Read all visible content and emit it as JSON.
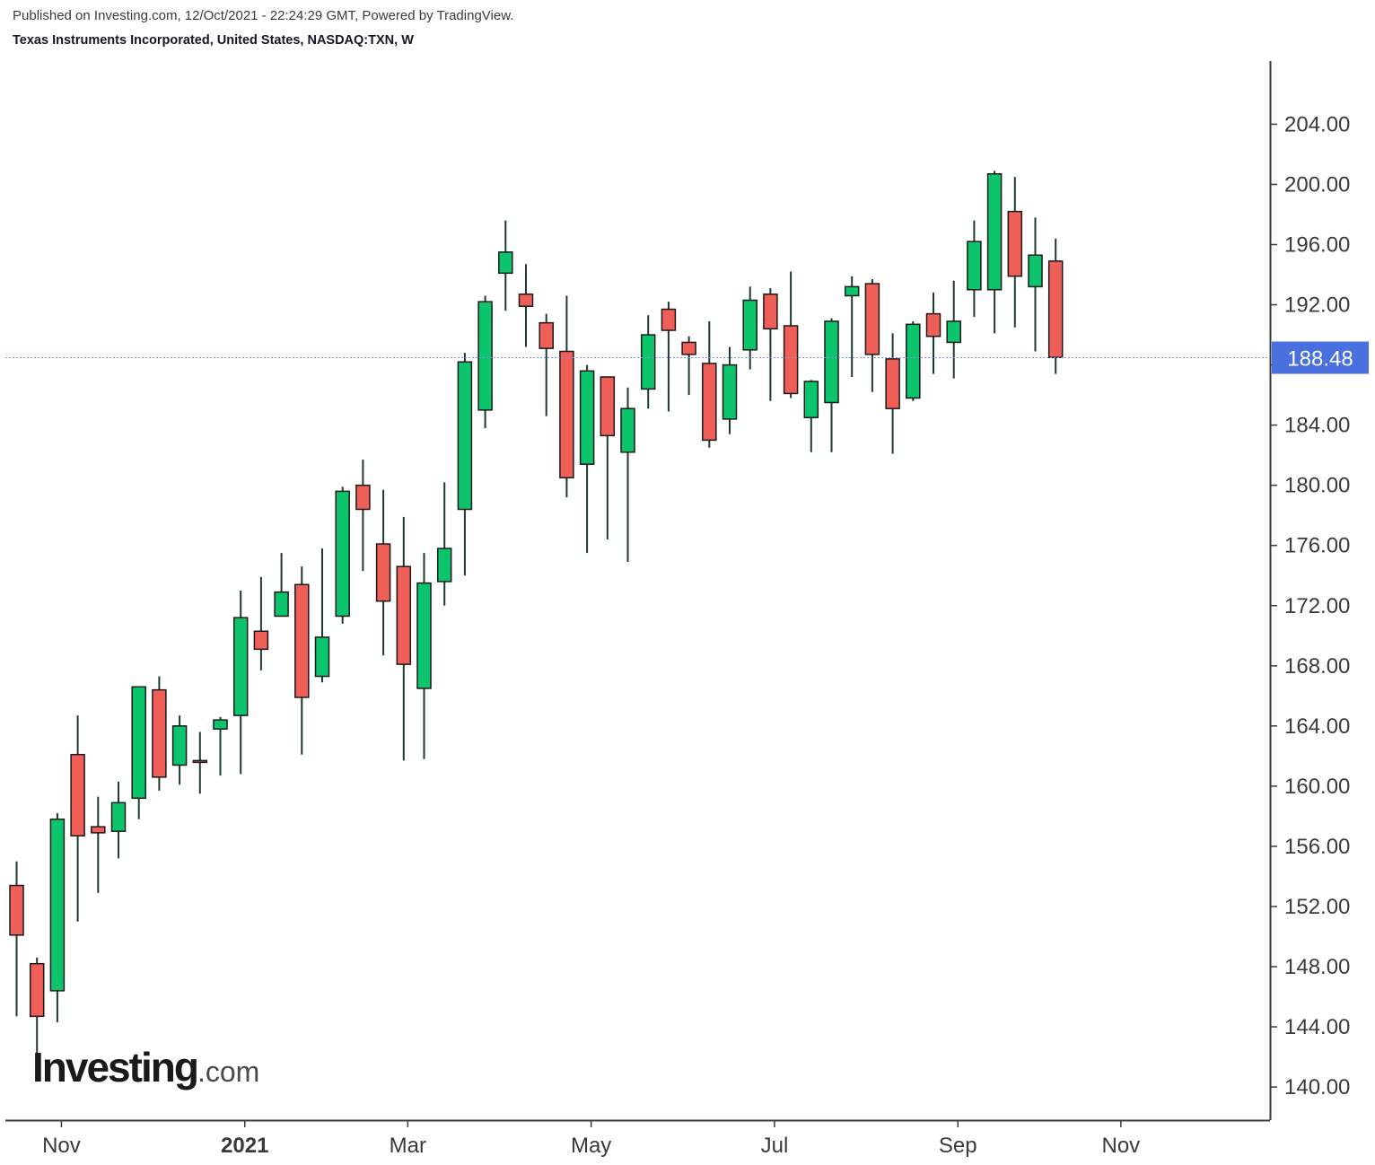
{
  "header": {
    "published": "Published on Investing.com, 12/Oct/2021 - 22:24:29 GMT, Powered by TradingView.",
    "instrument": "Texas Instruments Incorporated, United States, NASDAQ:TXN, W"
  },
  "logo": {
    "brand": "Investing",
    "suffix": ".com"
  },
  "colors": {
    "up": "#0cc46c",
    "down": "#f05f57",
    "wick": "#1d3b2a",
    "last_price_line": "#7b93d8",
    "last_price_badge": "#4a6fde",
    "axis": "#3a3a3a"
  },
  "chart_data": {
    "type": "candlestick",
    "interval": "W",
    "ylim": [
      137.8,
      208.2
    ],
    "yticks": [
      "140.00",
      "144.00",
      "148.00",
      "152.00",
      "156.00",
      "160.00",
      "164.00",
      "168.00",
      "172.00",
      "176.00",
      "180.00",
      "184.00",
      "188.00",
      "192.00",
      "196.00",
      "200.00",
      "204.00"
    ],
    "xticks": [
      {
        "label": "Nov",
        "index": 2.2,
        "bold": false
      },
      {
        "label": "2021",
        "index": 11.2,
        "bold": true
      },
      {
        "label": "Mar",
        "index": 19.2,
        "bold": false
      },
      {
        "label": "May",
        "index": 28.2,
        "bold": false
      },
      {
        "label": "Jul",
        "index": 37.2,
        "bold": false
      },
      {
        "label": "Sep",
        "index": 46.2,
        "bold": false
      },
      {
        "label": "Nov",
        "index": 54.2,
        "bold": false
      }
    ],
    "last_price": 188.48,
    "last_price_label": "188.48",
    "candles": [
      {
        "o": 153.4,
        "h": 155.0,
        "l": 144.7,
        "c": 150.1
      },
      {
        "o": 148.2,
        "h": 148.6,
        "l": 141.5,
        "c": 144.7
      },
      {
        "o": 146.4,
        "h": 158.2,
        "l": 144.3,
        "c": 157.8
      },
      {
        "o": 162.1,
        "h": 164.7,
        "l": 151.0,
        "c": 156.7
      },
      {
        "o": 157.3,
        "h": 159.3,
        "l": 152.9,
        "c": 156.9
      },
      {
        "o": 157.0,
        "h": 160.3,
        "l": 155.2,
        "c": 158.9
      },
      {
        "o": 159.2,
        "h": 166.6,
        "l": 157.8,
        "c": 166.6
      },
      {
        "o": 166.4,
        "h": 167.3,
        "l": 159.7,
        "c": 160.6
      },
      {
        "o": 161.4,
        "h": 164.7,
        "l": 160.1,
        "c": 164.0
      },
      {
        "o": 161.7,
        "h": 163.6,
        "l": 159.5,
        "c": 161.6
      },
      {
        "o": 163.8,
        "h": 164.6,
        "l": 160.7,
        "c": 164.4
      },
      {
        "o": 164.7,
        "h": 173.0,
        "l": 160.8,
        "c": 171.2
      },
      {
        "o": 170.3,
        "h": 173.9,
        "l": 167.7,
        "c": 169.1
      },
      {
        "o": 171.3,
        "h": 175.5,
        "l": 171.3,
        "c": 172.9
      },
      {
        "o": 173.4,
        "h": 174.6,
        "l": 162.1,
        "c": 165.9
      },
      {
        "o": 167.3,
        "h": 175.8,
        "l": 166.9,
        "c": 169.9
      },
      {
        "o": 171.3,
        "h": 179.9,
        "l": 170.8,
        "c": 179.6
      },
      {
        "o": 180.0,
        "h": 181.7,
        "l": 174.3,
        "c": 178.4
      },
      {
        "o": 176.1,
        "h": 179.7,
        "l": 168.7,
        "c": 172.3
      },
      {
        "o": 174.6,
        "h": 177.9,
        "l": 161.7,
        "c": 168.1
      },
      {
        "o": 166.5,
        "h": 175.5,
        "l": 161.8,
        "c": 173.5
      },
      {
        "o": 173.6,
        "h": 180.2,
        "l": 172.0,
        "c": 175.8
      },
      {
        "o": 178.4,
        "h": 188.8,
        "l": 174.0,
        "c": 188.2
      },
      {
        "o": 185.0,
        "h": 192.6,
        "l": 183.8,
        "c": 192.2
      },
      {
        "o": 194.1,
        "h": 197.6,
        "l": 191.6,
        "c": 195.5
      },
      {
        "o": 192.7,
        "h": 194.7,
        "l": 189.2,
        "c": 191.9
      },
      {
        "o": 190.8,
        "h": 191.4,
        "l": 184.6,
        "c": 189.1
      },
      {
        "o": 188.9,
        "h": 192.6,
        "l": 179.2,
        "c": 180.5
      },
      {
        "o": 181.4,
        "h": 188.0,
        "l": 175.5,
        "c": 187.6
      },
      {
        "o": 187.2,
        "h": 187.2,
        "l": 176.4,
        "c": 183.3
      },
      {
        "o": 182.2,
        "h": 186.5,
        "l": 174.9,
        "c": 185.1
      },
      {
        "o": 186.4,
        "h": 191.3,
        "l": 185.1,
        "c": 190.0
      },
      {
        "o": 191.7,
        "h": 192.2,
        "l": 184.9,
        "c": 190.3
      },
      {
        "o": 189.5,
        "h": 189.9,
        "l": 186.0,
        "c": 188.7
      },
      {
        "o": 188.1,
        "h": 190.9,
        "l": 182.5,
        "c": 183.0
      },
      {
        "o": 184.4,
        "h": 189.2,
        "l": 183.4,
        "c": 188.0
      },
      {
        "o": 189.0,
        "h": 193.2,
        "l": 187.7,
        "c": 192.3
      },
      {
        "o": 192.7,
        "h": 193.1,
        "l": 185.6,
        "c": 190.4
      },
      {
        "o": 190.6,
        "h": 194.2,
        "l": 185.8,
        "c": 186.1
      },
      {
        "o": 184.5,
        "h": 187.0,
        "l": 182.2,
        "c": 186.9
      },
      {
        "o": 185.5,
        "h": 191.1,
        "l": 182.2,
        "c": 190.9
      },
      {
        "o": 192.6,
        "h": 193.9,
        "l": 187.2,
        "c": 193.2
      },
      {
        "o": 193.4,
        "h": 193.7,
        "l": 186.2,
        "c": 188.7
      },
      {
        "o": 188.4,
        "h": 190.1,
        "l": 182.1,
        "c": 185.1
      },
      {
        "o": 185.8,
        "h": 190.9,
        "l": 185.6,
        "c": 190.7
      },
      {
        "o": 191.4,
        "h": 192.8,
        "l": 187.4,
        "c": 189.9
      },
      {
        "o": 189.5,
        "h": 193.6,
        "l": 187.1,
        "c": 190.9
      },
      {
        "o": 193.0,
        "h": 197.6,
        "l": 191.2,
        "c": 196.2
      },
      {
        "o": 193.0,
        "h": 200.9,
        "l": 190.1,
        "c": 200.7
      },
      {
        "o": 198.2,
        "h": 200.5,
        "l": 190.5,
        "c": 193.9
      },
      {
        "o": 193.2,
        "h": 197.8,
        "l": 188.9,
        "c": 195.3
      },
      {
        "o": 194.9,
        "h": 196.4,
        "l": 187.4,
        "c": 188.5
      }
    ]
  }
}
